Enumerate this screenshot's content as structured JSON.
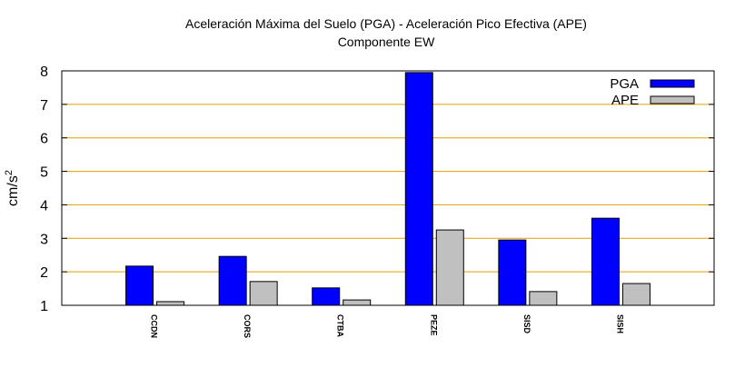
{
  "chart_data": {
    "type": "bar",
    "title": "Aceleración Máxima del Suelo (PGA) -  Aceleración Pico Efectiva (APE)",
    "subtitle": "Componente EW",
    "xlabel": "",
    "ylabel": "cm/s",
    "ylabel_sup": "2",
    "ylim": [
      1,
      8
    ],
    "yticks": [
      "1",
      "2",
      "3",
      "4",
      "5",
      "6",
      "7",
      "8"
    ],
    "grid": true,
    "legend_position": "top-right",
    "categories": [
      "CCDN",
      "CORS",
      "CTBA",
      "PEZE",
      "SISD",
      "SISH"
    ],
    "series": [
      {
        "name": "PGA",
        "color": "#0000ff",
        "values": [
          2.17,
          2.46,
          1.52,
          7.95,
          2.95,
          3.6
        ]
      },
      {
        "name": "APE",
        "color": "#c0c0c0",
        "values": [
          1.11,
          1.71,
          1.16,
          3.25,
          1.41,
          1.65
        ]
      }
    ],
    "grid_color": "#e0a000"
  }
}
